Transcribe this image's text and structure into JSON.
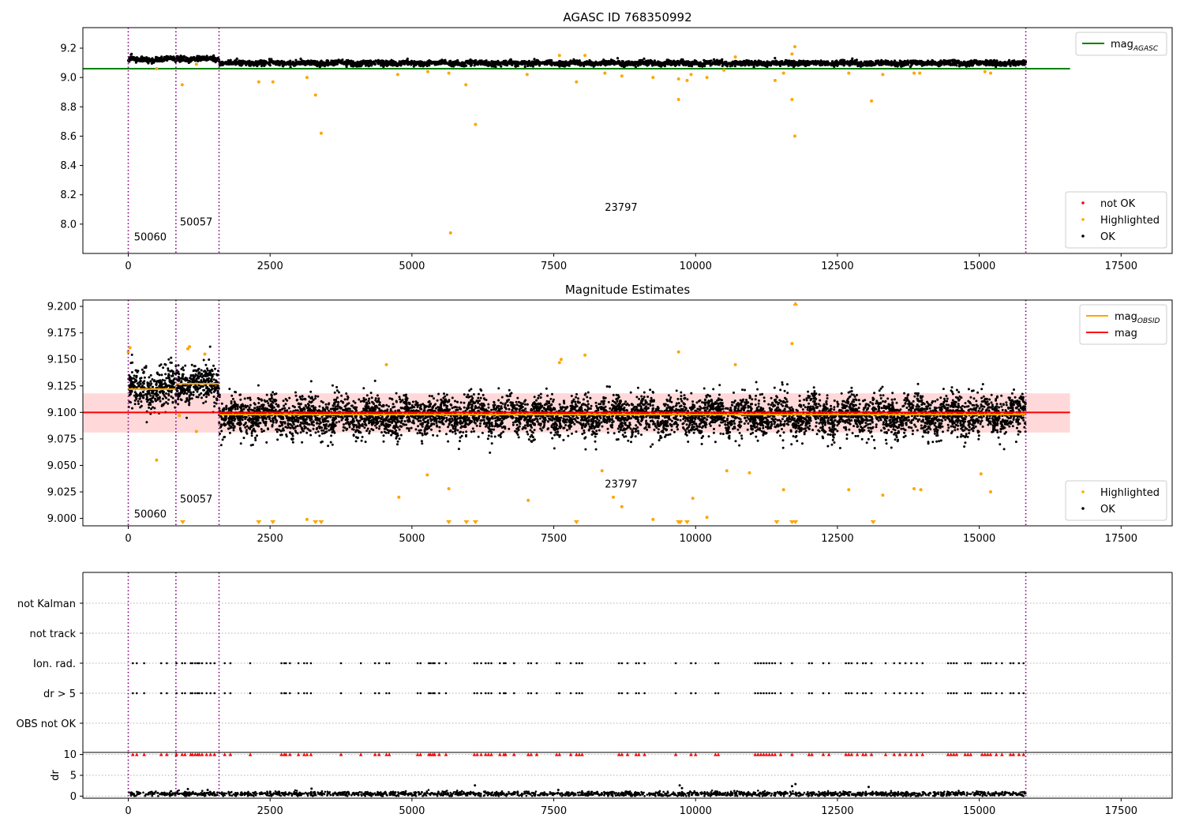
{
  "chart_data": [
    {
      "type": "scatter",
      "title": "AGASC ID 768350992",
      "xlabel": "",
      "ylabel": "",
      "xlim": [
        -800,
        18400
      ],
      "ylim": [
        7.8,
        9.34
      ],
      "xticks": [
        0,
        2500,
        5000,
        7500,
        10000,
        12500,
        15000,
        17500
      ],
      "yticks": [
        8.0,
        8.2,
        8.4,
        8.6,
        8.8,
        9.0,
        9.2
      ],
      "ytick_labels": [
        "8.0",
        "8.2",
        "8.4",
        "8.6",
        "8.8",
        "9.0",
        "9.2"
      ],
      "grid": false,
      "obsid_boundaries": [
        0,
        840,
        1600,
        15820
      ],
      "obsid_labels": [
        {
          "text": "50060",
          "x": 100,
          "y": 7.89
        },
        {
          "text": "50057",
          "x": 910,
          "y": 7.99
        },
        {
          "text": "23797",
          "x": 8400,
          "y": 8.09
        }
      ],
      "lines": [
        {
          "name": "mag_AGASC",
          "color": "#008000",
          "y": 9.06,
          "x_range": [
            -800,
            16600
          ]
        }
      ],
      "series": [
        {
          "name": "not OK",
          "color": "#ff0000",
          "points": []
        },
        {
          "name": "Highlighted",
          "color": "#ffa500",
          "points": [
            [
              500,
              9.06
            ],
            [
              950,
              8.95
            ],
            [
              2300,
              8.97
            ],
            [
              2550,
              8.97
            ],
            [
              3150,
              9.0
            ],
            [
              3300,
              8.88
            ],
            [
              3400,
              8.62
            ],
            [
              4750,
              9.02
            ],
            [
              5280,
              9.04
            ],
            [
              5650,
              9.03
            ],
            [
              5680,
              7.94
            ],
            [
              5950,
              8.95
            ],
            [
              6120,
              8.68
            ],
            [
              7030,
              9.02
            ],
            [
              7900,
              8.97
            ],
            [
              8400,
              9.03
            ],
            [
              8700,
              9.01
            ],
            [
              9250,
              9.0
            ],
            [
              9700,
              8.99
            ],
            [
              9700,
              8.85
            ],
            [
              9850,
              8.98
            ],
            [
              9920,
              9.02
            ],
            [
              10200,
              9.0
            ],
            [
              10500,
              9.05
            ],
            [
              10700,
              9.14
            ],
            [
              11400,
              8.98
            ],
            [
              11550,
              9.03
            ],
            [
              11700,
              8.85
            ],
            [
              11700,
              9.16
            ],
            [
              11750,
              8.6
            ],
            [
              11750,
              9.21
            ],
            [
              12700,
              9.03
            ],
            [
              13100,
              8.84
            ],
            [
              13300,
              9.02
            ],
            [
              13850,
              9.03
            ],
            [
              13950,
              9.03
            ],
            [
              15100,
              9.04
            ],
            [
              15200,
              9.03
            ],
            [
              1200,
              9.09
            ],
            [
              7600,
              9.15
            ],
            [
              8050,
              9.15
            ]
          ]
        },
        {
          "name": "OK",
          "color": "#000000",
          "segments": [
            {
              "x": [
                0,
                840
              ],
              "mean": 9.123,
              "spread": 0.012
            },
            {
              "x": [
                840,
                1600
              ],
              "mean": 9.127,
              "spread": 0.012
            },
            {
              "x": [
                1600,
                15820
              ],
              "mean": 9.098,
              "spread": 0.011
            }
          ]
        }
      ],
      "legends": [
        {
          "position": "top-right",
          "entries": [
            {
              "label_main": "mag",
              "label_sub": "AGASC",
              "kind": "line",
              "color": "#008000"
            }
          ]
        },
        {
          "position": "lower-right",
          "entries": [
            {
              "label": "not OK",
              "kind": "dot",
              "color": "#ff0000"
            },
            {
              "label": "Highlighted",
              "kind": "dot",
              "color": "#ffa500"
            },
            {
              "label": "OK",
              "kind": "dot",
              "color": "#000000"
            }
          ]
        }
      ]
    },
    {
      "type": "scatter",
      "title": "Magnitude Estimates",
      "xlabel": "",
      "ylabel": "",
      "xlim": [
        -800,
        18400
      ],
      "ylim": [
        8.993,
        9.206
      ],
      "xticks": [
        0,
        2500,
        5000,
        7500,
        10000,
        12500,
        15000,
        17500
      ],
      "yticks": [
        9.0,
        9.025,
        9.05,
        9.075,
        9.1,
        9.125,
        9.15,
        9.175,
        9.2
      ],
      "ytick_labels": [
        "9.000",
        "9.025",
        "9.050",
        "9.075",
        "9.100",
        "9.125",
        "9.150",
        "9.175",
        "9.200"
      ],
      "grid": false,
      "obsid_boundaries": [
        0,
        840,
        1600,
        15820
      ],
      "obsid_labels": [
        {
          "text": "50060",
          "x": 100,
          "y": 9.001
        },
        {
          "text": "50057",
          "x": 910,
          "y": 9.015
        },
        {
          "text": "23797",
          "x": 8400,
          "y": 9.029
        }
      ],
      "band": {
        "color": "#ffc0c0",
        "y": [
          9.081,
          9.118
        ],
        "x_range": [
          -800,
          16600
        ]
      },
      "lines": [
        {
          "name": "mag",
          "color": "#ff0000",
          "y": 9.1,
          "x_range": [
            -800,
            16600
          ]
        },
        {
          "name": "mag_OBSID",
          "color": "#ffa500",
          "steps": [
            {
              "x": [
                0,
                840
              ],
              "y": 9.122
            },
            {
              "x": [
                840,
                1600
              ],
              "y": 9.127
            },
            {
              "x": [
                1600,
                15820
              ],
              "y": 9.098
            }
          ]
        }
      ],
      "series": [
        {
          "name": "Highlighted",
          "color": "#ffa500",
          "points": [
            [
              0,
              9.157
            ],
            [
              30,
              9.161
            ],
            [
              500,
              9.055
            ],
            [
              900,
              9.097
            ],
            [
              1050,
              9.16
            ],
            [
              1080,
              9.162
            ],
            [
              1200,
              9.082
            ],
            [
              1350,
              9.155
            ],
            [
              4550,
              9.145
            ],
            [
              4770,
              9.02
            ],
            [
              5270,
              9.041
            ],
            [
              5650,
              9.028
            ],
            [
              7050,
              9.017
            ],
            [
              7600,
              9.147
            ],
            [
              7630,
              9.15
            ],
            [
              8050,
              9.154
            ],
            [
              8350,
              9.045
            ],
            [
              8550,
              9.02
            ],
            [
              8700,
              9.011
            ],
            [
              9250,
              8.999
            ],
            [
              9700,
              9.157
            ],
            [
              9950,
              9.019
            ],
            [
              10200,
              9.001
            ],
            [
              10550,
              9.045
            ],
            [
              10700,
              9.145
            ],
            [
              10950,
              9.043
            ],
            [
              11550,
              9.027
            ],
            [
              11700,
              9.165
            ],
            [
              12700,
              9.027
            ],
            [
              13300,
              9.022
            ],
            [
              13850,
              9.028
            ],
            [
              13970,
              9.027
            ],
            [
              15030,
              9.042
            ],
            [
              15200,
              9.025
            ],
            [
              3150,
              8.999
            ]
          ],
          "clipped_x": [
            960,
            2300,
            2550,
            3300,
            3400,
            5650,
            5960,
            6120,
            7900,
            9700,
            9730,
            9850,
            11430,
            11700,
            11760,
            13130
          ],
          "clipped_top_x": [
            11760
          ]
        },
        {
          "name": "OK",
          "color": "#000000",
          "segments": [
            {
              "x": [
                0,
                840
              ],
              "mean": 9.123,
              "spread": 0.012
            },
            {
              "x": [
                840,
                1600
              ],
              "mean": 9.127,
              "spread": 0.012
            },
            {
              "x": [
                1600,
                15820
              ],
              "mean": 9.097,
              "spread": 0.012
            }
          ]
        }
      ],
      "legends": [
        {
          "position": "top-right",
          "entries": [
            {
              "label_main": "mag",
              "label_sub": "OBSID",
              "kind": "line",
              "color": "#ffa500"
            },
            {
              "label": "mag",
              "kind": "line",
              "color": "#ff0000"
            }
          ]
        },
        {
          "position": "lower-right",
          "entries": [
            {
              "label": "Highlighted",
              "kind": "dot",
              "color": "#ffa500"
            },
            {
              "label": "OK",
              "kind": "dot",
              "color": "#000000"
            }
          ]
        }
      ]
    },
    {
      "type": "scatter",
      "title": "",
      "xlabel": "",
      "ylabel": "",
      "xlim": [
        -800,
        18400
      ],
      "flags": [
        "not Kalman",
        "not track",
        "Ion. rad.",
        "dr > 5",
        "OBS not OK"
      ],
      "grid": true,
      "obsid_boundaries": [
        0,
        840,
        1600,
        15820
      ],
      "flag_events_x": [
        80,
        150,
        280,
        580,
        680,
        850,
        950,
        1000,
        1100,
        1130,
        1180,
        1220,
        1250,
        1300,
        1380,
        1450,
        1520,
        1700,
        1800,
        2150,
        2700,
        2750,
        2780,
        2850,
        3000,
        3100,
        3150,
        3220,
        3750,
        4100,
        4350,
        4420,
        4550,
        4600,
        5100,
        5150,
        5300,
        5330,
        5370,
        5400,
        5480,
        5600,
        6100,
        6150,
        6220,
        6300,
        6350,
        6400,
        6550,
        6620,
        6650,
        6800,
        7050,
        7100,
        7200,
        7550,
        7600,
        7800,
        7900,
        7950,
        8000,
        8650,
        8700,
        8800,
        8950,
        9000,
        9100,
        9650,
        9920,
        10000,
        10350,
        10400,
        11050,
        11100,
        11150,
        11200,
        11250,
        11300,
        11350,
        11400,
        11500,
        11700,
        12000,
        12050,
        12250,
        12350,
        12650,
        12700,
        12750,
        12850,
        12950,
        13000,
        13100,
        13350,
        13500,
        13600,
        13700,
        13800,
        13900,
        14000,
        14450,
        14500,
        14550,
        14600,
        14750,
        14800,
        14850,
        15050,
        15100,
        15150,
        15200,
        15300,
        15400,
        15550,
        15600,
        15700,
        15780
      ]
    },
    {
      "type": "scatter",
      "title": "",
      "xlabel": "",
      "ylabel": "dr",
      "xlim": [
        -800,
        18400
      ],
      "ylim": [
        -0.5,
        10.5
      ],
      "xticks": [
        0,
        2500,
        5000,
        7500,
        10000,
        12500,
        15000,
        17500
      ],
      "yticks": [
        0,
        5,
        10
      ],
      "ytick_labels": [
        "0",
        "5",
        "10"
      ],
      "grid": true,
      "obsid_boundaries": [
        0,
        840,
        1600,
        15820
      ],
      "dr_clip_marker_y": 10,
      "series": [
        {
          "name": "dr",
          "color": "#000000",
          "mean": 0.55,
          "spread": 0.35,
          "outliers": [
            [
              3230,
              1.8
            ],
            [
              6110,
              2.6
            ],
            [
              7580,
              1.5
            ],
            [
              9720,
              2.6
            ],
            [
              9760,
              1.9
            ],
            [
              11700,
              2.4
            ],
            [
              11760,
              2.9
            ],
            [
              13050,
              2.2
            ],
            [
              1050,
              1.7
            ],
            [
              1400,
              1.5
            ]
          ]
        }
      ]
    }
  ]
}
